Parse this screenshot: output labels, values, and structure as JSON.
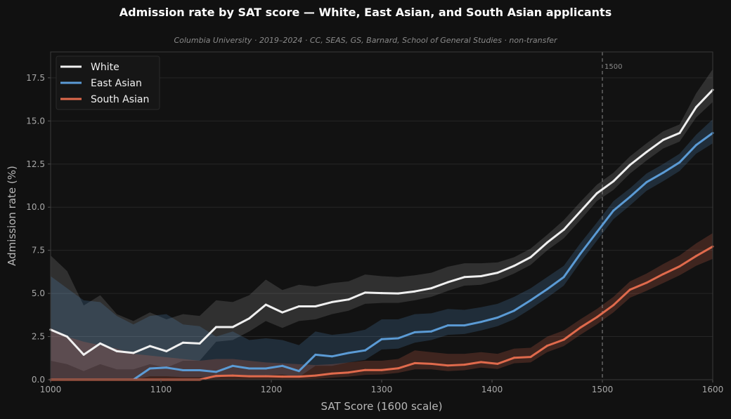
{
  "chart_data": {
    "type": "line",
    "title": "Admission rate by SAT score — White, East Asian, and South Asian applicants",
    "subtitle": "Columbia University · 2019–2024 · CC, SEAS, GS, Barnard, School of General Studies · non-transfer",
    "xlabel": "SAT Score (1600 scale)",
    "ylabel": "Admission rate (%)",
    "xlim": [
      1000,
      1600
    ],
    "ylim": [
      0,
      19
    ],
    "x_ticks": [
      1000,
      1100,
      1200,
      1300,
      1400,
      1500,
      1600
    ],
    "y_ticks": [
      "0.0",
      "2.5",
      "5.0",
      "7.5",
      "10.0",
      "12.5",
      "15.0",
      "17.5"
    ],
    "grid": "horizontal",
    "legend_position": "top-left",
    "reference_line": {
      "x": 1500,
      "label": "1500",
      "style": "dashed"
    },
    "x": [
      1000,
      1015,
      1030,
      1045,
      1060,
      1075,
      1090,
      1105,
      1120,
      1135,
      1150,
      1165,
      1180,
      1195,
      1210,
      1225,
      1240,
      1255,
      1270,
      1285,
      1300,
      1315,
      1330,
      1345,
      1360,
      1375,
      1390,
      1405,
      1420,
      1435,
      1450,
      1465,
      1480,
      1495,
      1510,
      1525,
      1540,
      1555,
      1570,
      1585,
      1600
    ],
    "series": [
      {
        "name": "White",
        "color": "#f0f0f0",
        "values": [
          2.9,
          2.5,
          1.45,
          2.1,
          1.65,
          1.55,
          1.95,
          1.65,
          2.15,
          2.1,
          3.05,
          3.05,
          3.55,
          4.35,
          3.9,
          4.25,
          4.25,
          4.5,
          4.65,
          5.05,
          5.02,
          5.0,
          5.12,
          5.3,
          5.65,
          5.95,
          6.0,
          6.2,
          6.6,
          7.1,
          7.95,
          8.7,
          9.75,
          10.8,
          11.5,
          12.45,
          13.2,
          13.9,
          14.3,
          15.8,
          16.8
        ],
        "ci_lower": [
          1.1,
          0.9,
          0.5,
          0.9,
          0.6,
          0.6,
          0.9,
          0.7,
          1.1,
          1.1,
          2.2,
          2.3,
          2.8,
          3.4,
          3.0,
          3.4,
          3.5,
          3.8,
          4.0,
          4.4,
          4.45,
          4.45,
          4.6,
          4.8,
          5.15,
          5.45,
          5.5,
          5.75,
          6.15,
          6.65,
          7.5,
          8.2,
          9.25,
          10.35,
          11.0,
          11.95,
          12.7,
          13.4,
          13.8,
          15.2,
          16.1
        ],
        "ci_upper": [
          7.2,
          6.3,
          4.3,
          4.9,
          3.8,
          3.4,
          3.9,
          3.5,
          3.8,
          3.7,
          4.6,
          4.5,
          4.9,
          5.8,
          5.2,
          5.5,
          5.4,
          5.6,
          5.7,
          6.1,
          6.0,
          5.95,
          6.05,
          6.2,
          6.55,
          6.75,
          6.75,
          6.8,
          7.1,
          7.6,
          8.4,
          9.25,
          10.3,
          11.3,
          12.0,
          12.95,
          13.7,
          14.4,
          14.8,
          16.6,
          18.0
        ]
      },
      {
        "name": "East Asian",
        "color": "#5b9bd5",
        "values": [
          0,
          0,
          0,
          0,
          0,
          0,
          0.65,
          0.7,
          0.55,
          0.55,
          0.45,
          0.8,
          0.65,
          0.65,
          0.8,
          0.5,
          1.45,
          1.35,
          1.55,
          1.7,
          2.35,
          2.4,
          2.75,
          2.8,
          3.15,
          3.15,
          3.35,
          3.6,
          4.0,
          4.6,
          5.25,
          5.95,
          7.3,
          8.55,
          9.8,
          10.6,
          11.45,
          12.0,
          12.6,
          13.6,
          14.3
        ],
        "ci_lower": [
          0,
          0,
          0,
          0,
          0,
          0,
          0.2,
          0.2,
          0.15,
          0.15,
          0.1,
          0.3,
          0.25,
          0.25,
          0.3,
          0.15,
          0.8,
          0.8,
          1.0,
          1.15,
          1.75,
          1.8,
          2.15,
          2.3,
          2.6,
          2.65,
          2.85,
          3.1,
          3.5,
          4.1,
          4.75,
          5.45,
          6.8,
          8.05,
          9.3,
          10.1,
          10.95,
          11.5,
          12.1,
          13.1,
          13.7
        ],
        "ci_upper": [
          6.0,
          5.3,
          4.6,
          4.5,
          3.7,
          3.2,
          3.7,
          3.8,
          3.2,
          3.1,
          2.5,
          2.8,
          2.3,
          2.4,
          2.3,
          2.0,
          2.8,
          2.6,
          2.7,
          2.9,
          3.5,
          3.5,
          3.8,
          3.85,
          4.1,
          4.05,
          4.2,
          4.4,
          4.8,
          5.3,
          5.95,
          6.6,
          7.9,
          9.1,
          10.35,
          11.1,
          11.95,
          12.5,
          13.1,
          14.2,
          15.1
        ]
      },
      {
        "name": "South Asian",
        "color": "#e06a4c",
        "values": [
          0,
          0,
          0,
          0,
          0,
          0,
          0,
          0,
          0,
          0,
          0.22,
          0.24,
          0.2,
          0.2,
          0.18,
          0.18,
          0.24,
          0.36,
          0.42,
          0.56,
          0.56,
          0.66,
          0.96,
          0.92,
          0.82,
          0.87,
          1.02,
          0.92,
          1.27,
          1.32,
          1.97,
          2.32,
          3.02,
          3.62,
          4.32,
          5.22,
          5.62,
          6.12,
          6.57,
          7.17,
          7.72
        ],
        "ci_lower": [
          0,
          0,
          0,
          0,
          0,
          0,
          0,
          0,
          0,
          0,
          0.02,
          0.02,
          0.02,
          0.02,
          0.02,
          0.02,
          0.05,
          0.12,
          0.18,
          0.28,
          0.3,
          0.4,
          0.6,
          0.6,
          0.5,
          0.55,
          0.7,
          0.62,
          0.95,
          1.0,
          1.6,
          1.95,
          2.6,
          3.2,
          3.9,
          4.75,
          5.15,
          5.6,
          6.05,
          6.6,
          7.0
        ],
        "ci_upper": [
          3.0,
          2.5,
          2.2,
          2.0,
          1.8,
          1.5,
          1.4,
          1.3,
          1.2,
          1.1,
          1.2,
          1.2,
          1.1,
          1.0,
          0.95,
          0.9,
          0.85,
          0.9,
          1.0,
          1.1,
          1.1,
          1.2,
          1.7,
          1.6,
          1.5,
          1.5,
          1.6,
          1.5,
          1.8,
          1.85,
          2.5,
          2.85,
          3.5,
          4.1,
          4.8,
          5.7,
          6.15,
          6.7,
          7.2,
          7.9,
          8.5
        ]
      }
    ]
  }
}
